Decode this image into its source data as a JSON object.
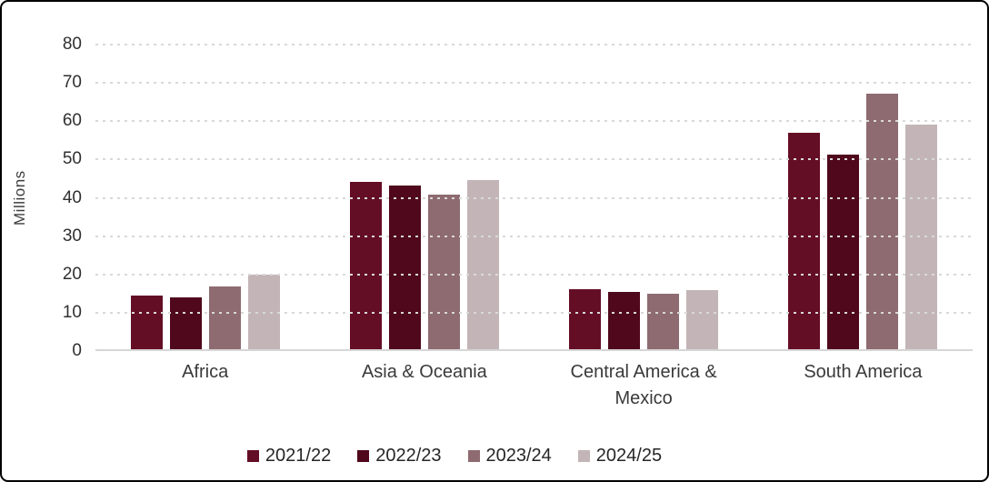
{
  "chart_data": {
    "type": "bar",
    "title": "",
    "xlabel": "",
    "ylabel": "Millions",
    "ylim": [
      0,
      80
    ],
    "yticks": [
      0,
      10,
      20,
      30,
      40,
      50,
      60,
      70,
      80
    ],
    "grid": "horizontal-dotted",
    "legend_position": "bottom-center",
    "categories": [
      "Africa",
      "Asia & Oceania",
      "Central America & Mexico",
      "South America"
    ],
    "series": [
      {
        "name": "2021/22",
        "color": "#640E26",
        "values": [
          14.0,
          44.0,
          15.8,
          56.9
        ]
      },
      {
        "name": "2022/23",
        "color": "#4F081C",
        "values": [
          13.6,
          43.0,
          15.1,
          51.2
        ]
      },
      {
        "name": "2023/24",
        "color": "#8E6B70",
        "values": [
          16.5,
          40.7,
          14.5,
          67.2
        ]
      },
      {
        "name": "2024/25",
        "color": "#C3B5B7",
        "values": [
          19.7,
          44.5,
          15.6,
          59.0
        ]
      }
    ]
  },
  "colors": {
    "axis_line": "#d6d6d6",
    "gridline": "#d9d9d9",
    "text": "#3a3a3a",
    "card_border": "#000000",
    "background": "#ffffff"
  }
}
